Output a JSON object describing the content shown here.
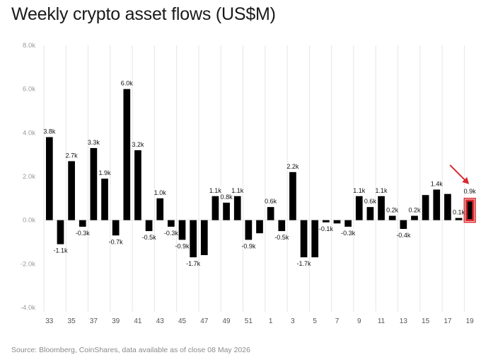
{
  "source": "Source: Bloomberg, CoinShares, data available as of close 08 May 2026",
  "colors": {
    "bar": "#000000",
    "highlight": "#d9292f",
    "grid": "#e6e6e6",
    "arrow": "#d9292f"
  },
  "chart_data": {
    "type": "bar",
    "title": "Weekly crypto asset flows (US$M)",
    "xlabel": "",
    "ylabel": "",
    "ylim": [
      -4000,
      8000
    ],
    "yticks": [
      8000,
      6000,
      4000,
      2000,
      0,
      -2000,
      -4000
    ],
    "ytick_labels": [
      "8.0k",
      "6.0k",
      "4.0k",
      "2.0k",
      "0.0k",
      "-2.0k",
      "-4.0k"
    ],
    "grid": "vertical",
    "categories": [
      "33",
      "34",
      "35",
      "36",
      "37",
      "38",
      "39",
      "40",
      "41",
      "42",
      "43",
      "44",
      "45",
      "46",
      "47",
      "48",
      "49",
      "50",
      "51",
      "52",
      "1",
      "2",
      "3",
      "4",
      "5",
      "6",
      "7",
      "8",
      "9",
      "10",
      "11",
      "12",
      "13",
      "14",
      "15",
      "16",
      "17",
      "18",
      "19"
    ],
    "xtick_labels": [
      "33",
      "35",
      "37",
      "39",
      "41",
      "43",
      "45",
      "47",
      "49",
      "51",
      "1",
      "3",
      "5",
      "7",
      "9",
      "11",
      "13",
      "15",
      "17",
      "19"
    ],
    "values": [
      3800,
      -1100,
      2700,
      -300,
      3300,
      1900,
      -700,
      6000,
      3200,
      -500,
      1000,
      -300,
      -900,
      -1700,
      -1600,
      1100,
      800,
      1100,
      -900,
      -600,
      600,
      -500,
      2200,
      -1700,
      -1700,
      -100,
      -150,
      -300,
      1100,
      600,
      1100,
      200,
      -400,
      200,
      1150,
      1400,
      1200,
      100,
      900
    ],
    "data_labels": [
      "3.8k",
      "-1.1k",
      "2.7k",
      "-0.3k",
      "3.3k",
      "1.9k",
      "-0.7k",
      "6.0k",
      "3.2k",
      "-0.5k",
      "1.0k",
      "-0.3k",
      "-0.9k",
      "-1.7k",
      "",
      "1.1k",
      "0.8k",
      "1.1k",
      "-0.9k",
      "",
      "0.6k",
      "-0.5k",
      "2.2k",
      "-1.7k",
      "",
      "-0.1k",
      "",
      "-0.3k",
      "1.1k",
      "0.6k",
      "1.1k",
      "0.2k",
      "-0.4k",
      "0.2k",
      "",
      "1.4k",
      "",
      "0.1k",
      "0.9k"
    ],
    "highlight_index": 38,
    "annotation": "arrow"
  }
}
